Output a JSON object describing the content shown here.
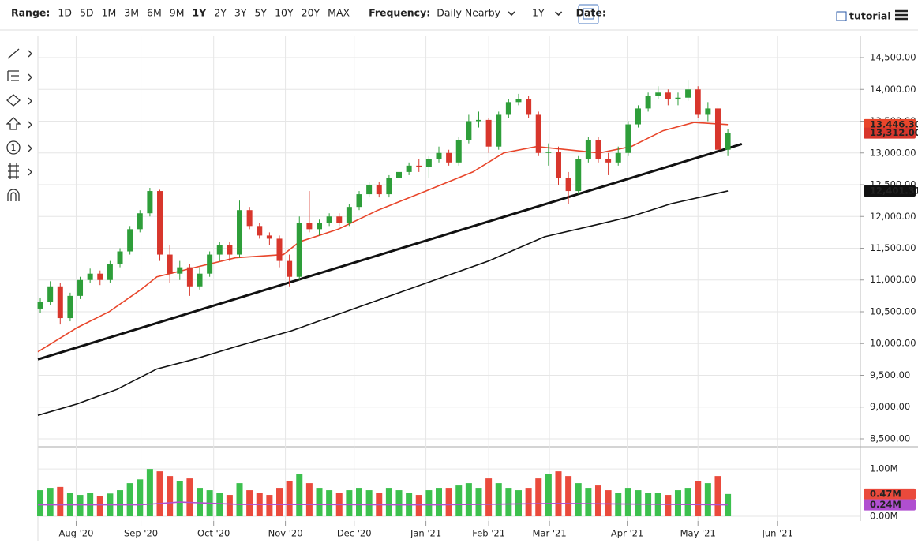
{
  "toolbar": {
    "range_label": "Range:",
    "ranges": [
      "1D",
      "5D",
      "1M",
      "3M",
      "6M",
      "9M",
      "1Y",
      "2Y",
      "3Y",
      "5Y",
      "10Y",
      "20Y",
      "MAX"
    ],
    "active_range": "1Y",
    "frequency_label": "Frequency:",
    "frequency": "Daily Nearby",
    "period": "1Y",
    "date_label": "Date:",
    "tutorial": "tutorial"
  },
  "tools": {
    "note": "1"
  },
  "chart_data": {
    "type": "candlestick",
    "xlim": [
      -0.24,
      82.3
    ],
    "xticks": [
      {
        "value": 3.6,
        "label": "Aug '20"
      },
      {
        "value": 10.1,
        "label": "Sep '20"
      },
      {
        "value": 17.4,
        "label": "Oct '20"
      },
      {
        "value": 24.6,
        "label": "Nov '20"
      },
      {
        "value": 31.5,
        "label": "Dec '20"
      },
      {
        "value": 38.7,
        "label": "Jan '21"
      },
      {
        "value": 45,
        "label": "Feb '21"
      },
      {
        "value": 51.1,
        "label": "Mar '21"
      },
      {
        "value": 58.9,
        "label": "Apr '21"
      },
      {
        "value": 66,
        "label": "May '21"
      },
      {
        "value": 74,
        "label": "Jun '21"
      }
    ],
    "ylim": [
      8388,
      14848
    ],
    "yticks": [
      {
        "value": 8500,
        "label": "8,500.00"
      },
      {
        "value": 9000,
        "label": "9,000.00"
      },
      {
        "value": 9500,
        "label": "9,500.00"
      },
      {
        "value": 10000,
        "label": "10,000.00"
      },
      {
        "value": 10500,
        "label": "10,500.00"
      },
      {
        "value": 11000,
        "label": "11,000.00"
      },
      {
        "value": 11500,
        "label": "11,500.00"
      },
      {
        "value": 12000,
        "label": "12,000.00"
      },
      {
        "value": 12500,
        "label": "12,500.00"
      },
      {
        "value": 13000,
        "label": "13,000.00"
      },
      {
        "value": 13500,
        "label": "13,500.00"
      },
      {
        "value": 14000,
        "label": "14,000.00"
      },
      {
        "value": 14500,
        "label": "14,500.00"
      }
    ],
    "grid": true,
    "up_color": "#2e9e3a",
    "down_color": "#d8362c",
    "ohlc": [
      [
        10550,
        10720,
        10480,
        10650
      ],
      [
        10650,
        10980,
        10600,
        10900
      ],
      [
        10900,
        10950,
        10300,
        10400
      ],
      [
        10400,
        10800,
        10350,
        10750
      ],
      [
        10750,
        11050,
        10700,
        11000
      ],
      [
        11000,
        11180,
        10950,
        11100
      ],
      [
        11100,
        11150,
        10920,
        11000
      ],
      [
        11000,
        11300,
        10960,
        11250
      ],
      [
        11250,
        11500,
        11200,
        11450
      ],
      [
        11450,
        11850,
        11400,
        11800
      ],
      [
        11800,
        12100,
        11750,
        12050
      ],
      [
        12050,
        12450,
        12000,
        12400
      ],
      [
        12400,
        12420,
        11300,
        11400
      ],
      [
        11400,
        11550,
        10950,
        11100
      ],
      [
        11100,
        11300,
        11000,
        11200
      ],
      [
        11200,
        11250,
        10750,
        10900
      ],
      [
        10900,
        11200,
        10850,
        11100
      ],
      [
        11100,
        11450,
        11050,
        11400
      ],
      [
        11400,
        11600,
        11300,
        11550
      ],
      [
        11550,
        11600,
        11300,
        11400
      ],
      [
        11400,
        12250,
        11350,
        12100
      ],
      [
        12100,
        12150,
        11800,
        11850
      ],
      [
        11850,
        11900,
        11650,
        11700
      ],
      [
        11700,
        11750,
        11550,
        11650
      ],
      [
        11650,
        11700,
        11200,
        11300
      ],
      [
        11300,
        11400,
        10900,
        11050
      ],
      [
        11050,
        12000,
        11000,
        11900
      ],
      [
        11900,
        12400,
        11750,
        11800
      ],
      [
        11800,
        11950,
        11700,
        11900
      ],
      [
        11900,
        12050,
        11850,
        12000
      ],
      [
        12000,
        12050,
        11850,
        11900
      ],
      [
        11900,
        12200,
        11850,
        12150
      ],
      [
        12150,
        12400,
        12100,
        12350
      ],
      [
        12350,
        12550,
        12300,
        12500
      ],
      [
        12500,
        12550,
        12300,
        12350
      ],
      [
        12350,
        12650,
        12300,
        12600
      ],
      [
        12600,
        12750,
        12550,
        12700
      ],
      [
        12700,
        12850,
        12650,
        12800
      ],
      [
        12800,
        12900,
        12700,
        12780
      ],
      [
        12780,
        12950,
        12600,
        12900
      ],
      [
        12900,
        13100,
        12850,
        13000
      ],
      [
        13000,
        13050,
        12800,
        12850
      ],
      [
        12850,
        13250,
        12800,
        13200
      ],
      [
        13200,
        13600,
        13150,
        13500
      ],
      [
        13500,
        13650,
        13400,
        13520
      ],
      [
        13520,
        13550,
        13000,
        13100
      ],
      [
        13100,
        13650,
        13050,
        13600
      ],
      [
        13600,
        13850,
        13550,
        13800
      ],
      [
        13800,
        13930,
        13750,
        13850
      ],
      [
        13850,
        13900,
        13550,
        13600
      ],
      [
        13600,
        13650,
        12950,
        13000
      ],
      [
        13000,
        13150,
        12800,
        13020
      ],
      [
        13020,
        13100,
        12500,
        12600
      ],
      [
        12600,
        12700,
        12200,
        12400
      ],
      [
        12400,
        12950,
        12350,
        12900
      ],
      [
        12900,
        13250,
        12850,
        13200
      ],
      [
        13200,
        13250,
        12850,
        12900
      ],
      [
        12900,
        13000,
        12650,
        12850
      ],
      [
        12850,
        13100,
        12800,
        13000
      ],
      [
        13000,
        13500,
        12950,
        13450
      ],
      [
        13450,
        13750,
        13400,
        13700
      ],
      [
        13700,
        13950,
        13650,
        13900
      ],
      [
        13900,
        14050,
        13850,
        13950
      ],
      [
        13950,
        14000,
        13750,
        13850
      ],
      [
        13850,
        13950,
        13750,
        13870
      ],
      [
        13870,
        14150,
        13820,
        14000
      ],
      [
        14000,
        14050,
        13550,
        13600
      ],
      [
        13600,
        13800,
        13500,
        13700
      ],
      [
        13700,
        13750,
        13000,
        13050
      ],
      [
        13050,
        13380,
        12950,
        13312
      ]
    ],
    "ma50": {
      "color": "#e8462b",
      "x": [
        -0.24,
        3.7,
        6.9,
        10.1,
        11.7,
        15.6,
        19.6,
        24.4,
        26,
        29.9,
        33.9,
        38.7,
        43.4,
        46.5,
        49.8,
        52.9,
        56.1,
        59.3,
        62.5,
        65.6,
        69
      ],
      "values": [
        9870,
        10250,
        10500,
        10850,
        11050,
        11200,
        11350,
        11400,
        11600,
        11800,
        12100,
        12400,
        12700,
        13000,
        13100,
        13050,
        13000,
        13100,
        13350,
        13480,
        13446.3
      ]
    },
    "ma200": {
      "color": "#111111",
      "x": [
        -0.24,
        3.7,
        7.7,
        11.7,
        15.6,
        19.6,
        25.2,
        31.5,
        38.7,
        45,
        50.6,
        56.1,
        59.3,
        63.3,
        69
      ],
      "values": [
        8870,
        9050,
        9280,
        9600,
        9760,
        9950,
        10200,
        10550,
        10950,
        11300,
        11680,
        11880,
        12000,
        12200,
        12401.31
      ]
    },
    "trendline": {
      "color": "#111111",
      "x": [
        -0.24,
        70.4
      ],
      "values": [
        9750,
        13140
      ]
    },
    "last_labels": [
      {
        "value": 13446.3,
        "label": "13,446.30",
        "color": "#e8462b"
      },
      {
        "value": 13312,
        "label": "13,312.00",
        "color": "#d8362c"
      },
      {
        "value": 12401.31,
        "label": "12,401.31",
        "color": "#111111"
      }
    ],
    "volume": {
      "ylim": [
        0,
        1.47
      ],
      "yticks": [
        {
          "value": 0,
          "label": "0.00M"
        },
        {
          "value": 1,
          "label": "1.00M"
        }
      ],
      "up_color": "#3cc04e",
      "down_color": "#ea4a3c",
      "values": [
        0.55,
        0.6,
        0.62,
        0.5,
        0.45,
        0.5,
        0.42,
        0.48,
        0.55,
        0.7,
        0.78,
        1.0,
        0.95,
        0.85,
        0.75,
        0.8,
        0.6,
        0.55,
        0.5,
        0.45,
        0.7,
        0.55,
        0.5,
        0.45,
        0.6,
        0.75,
        0.9,
        0.7,
        0.6,
        0.55,
        0.5,
        0.55,
        0.6,
        0.55,
        0.5,
        0.6,
        0.55,
        0.5,
        0.45,
        0.55,
        0.6,
        0.6,
        0.65,
        0.7,
        0.6,
        0.8,
        0.7,
        0.6,
        0.55,
        0.6,
        0.8,
        0.9,
        0.95,
        0.85,
        0.7,
        0.6,
        0.65,
        0.55,
        0.5,
        0.6,
        0.55,
        0.5,
        0.5,
        0.45,
        0.55,
        0.6,
        0.75,
        0.7,
        0.85,
        0.47
      ],
      "average": {
        "color": "#b04fd0",
        "x": [
          -0.24,
          10,
          14,
          20,
          40,
          52,
          69
        ],
        "values": [
          0.24,
          0.24,
          0.3,
          0.25,
          0.24,
          0.27,
          0.24
        ]
      },
      "last_labels": [
        {
          "value": 0.47,
          "label": "0.47M",
          "color": "#ea4a3c"
        },
        {
          "value": 0.24,
          "label": "0.24M",
          "color": "#b04fd0"
        }
      ]
    }
  }
}
